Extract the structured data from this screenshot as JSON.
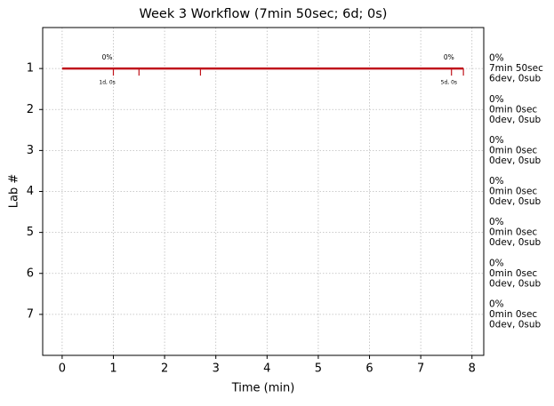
{
  "chart_data": {
    "type": "timeline",
    "title": "Week 3 Workflow (7min 50sec; 6d; 0s)",
    "x_label": "Time (min)",
    "y_label": "Lab #",
    "xlim": [
      -0.38,
      8.23
    ],
    "ylim": [
      8,
      0
    ],
    "xticks": [
      0,
      1,
      2,
      3,
      4,
      5,
      6,
      7,
      8
    ],
    "yticks": [
      1,
      2,
      3,
      4,
      5,
      6,
      7
    ],
    "grid": true,
    "labs": [
      {
        "y": 1,
        "color": "#c0141c",
        "label_lines": [
          "0%",
          "7min 50sec",
          "6dev, 0sub"
        ],
        "start": 0,
        "end": 7.833,
        "events": [
          1,
          1.5,
          2.7,
          7.6,
          7.833
        ]
      },
      {
        "y": 2,
        "color": "#5b0f8a",
        "label_lines": [
          "0%",
          "0min 0sec",
          "0dev, 0sub"
        ]
      },
      {
        "y": 3,
        "color": "#1a2a6e",
        "label_lines": [
          "0%",
          "0min 0sec",
          "0dev, 0sub"
        ]
      },
      {
        "y": 4,
        "color": "#1a9ad6",
        "label_lines": [
          "0%",
          "0min 0sec",
          "0dev, 0sub"
        ]
      },
      {
        "y": 5,
        "color": "#2a9a2a",
        "label_lines": [
          "0%",
          "0min 0sec",
          "0dev, 0sub"
        ]
      },
      {
        "y": 6,
        "color": "#d35400",
        "label_lines": [
          "0%",
          "0min 0sec",
          "0dev, 0sub"
        ]
      },
      {
        "y": 7,
        "color": "#000000",
        "label_lines": [
          "0%",
          "0min 0sec",
          "0dev, 0sub"
        ]
      }
    ],
    "annotations": [
      {
        "x": 0.88,
        "y": 1,
        "above": "0%",
        "below": "1d, 0s"
      },
      {
        "x": 7.55,
        "y": 1,
        "above": "0%",
        "below": "5d, 0s"
      }
    ]
  }
}
